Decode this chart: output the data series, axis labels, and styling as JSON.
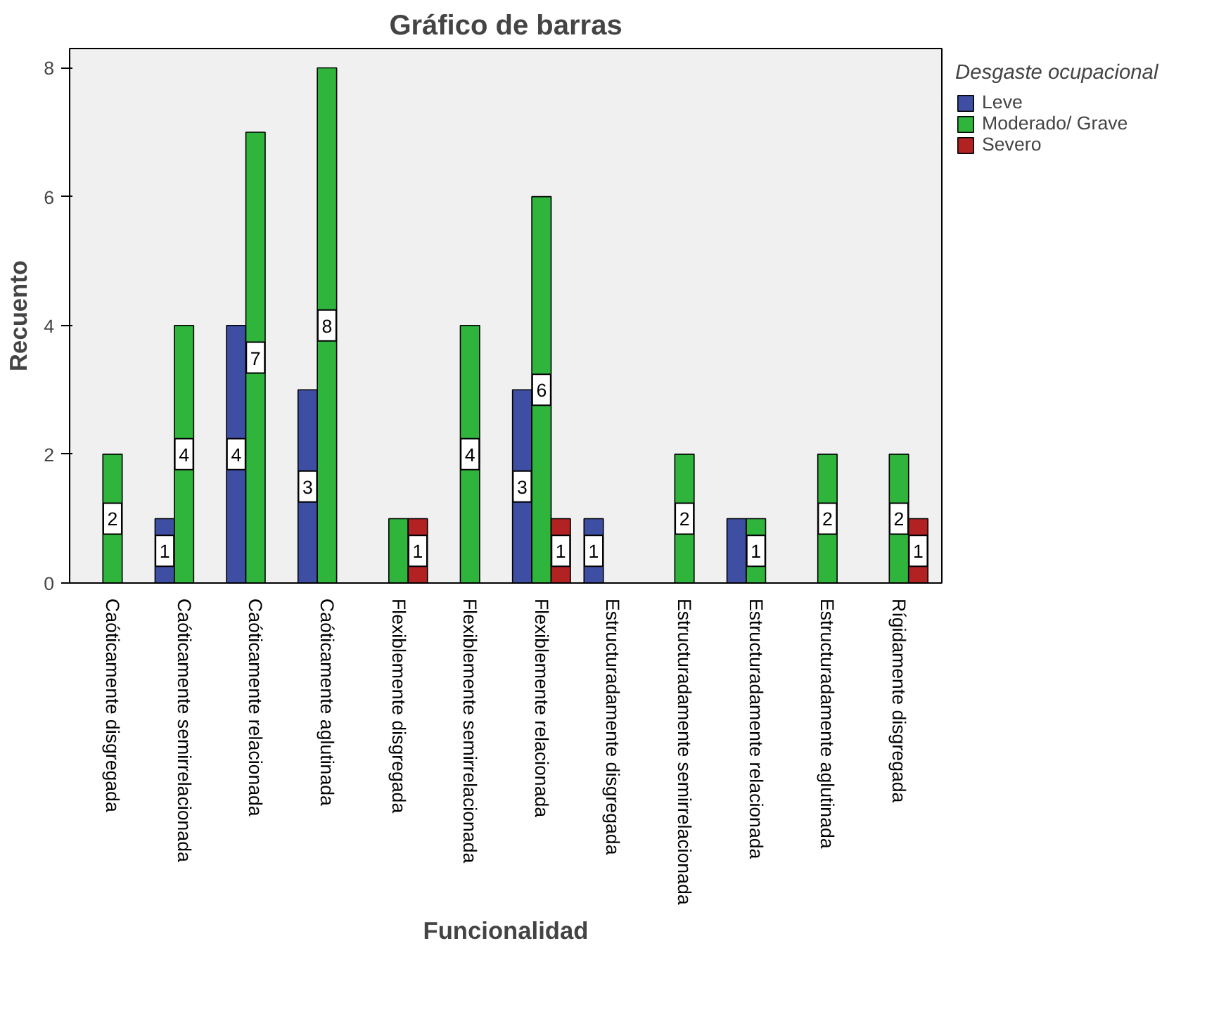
{
  "chart_data": {
    "type": "bar",
    "title": "Gráfico de barras",
    "xlabel": "Funcionalidad",
    "ylabel": "Recuento",
    "legend_title": "Desgaste ocupacional",
    "categories": [
      "Caóticamente disgregada",
      "Caóticamente semirrelacionada",
      "Caóticamente relacionada",
      "Caóticamente aglutinada",
      "Flexiblemente disgregada",
      "Flexiblemente semirrelacionada",
      "Flexiblemente relacionada",
      "Estructuradamente disgregada",
      "Estructuradamente semirrelacionada",
      "Estructuradamente relacionada",
      "Estructuradamente aglutinada",
      "Rígidamente disgregada"
    ],
    "series": [
      {
        "name": "Leve",
        "color": "#3e4fa3",
        "values": [
          null,
          1,
          4,
          3,
          null,
          null,
          3,
          1,
          null,
          1,
          null,
          null
        ],
        "value_labels": [
          null,
          "1",
          "4",
          "3",
          null,
          null,
          "3",
          "1",
          null,
          null,
          null,
          null
        ]
      },
      {
        "name": "Moderado/ Grave",
        "color": "#2fb43c",
        "values": [
          2,
          4,
          7,
          8,
          1,
          4,
          6,
          null,
          2,
          1,
          2,
          2
        ],
        "value_labels": [
          "2",
          "4",
          "7",
          "8",
          null,
          "4",
          "6",
          null,
          "2",
          "1",
          "2",
          "2"
        ]
      },
      {
        "name": "Severo",
        "color": "#b22222",
        "values": [
          null,
          null,
          null,
          null,
          1,
          null,
          1,
          null,
          null,
          null,
          null,
          1
        ],
        "value_labels": [
          null,
          null,
          null,
          null,
          "1",
          null,
          "1",
          null,
          null,
          null,
          null,
          "1"
        ]
      }
    ],
    "ylim": [
      0,
      8.3
    ],
    "yticks": [
      0,
      2,
      4,
      6,
      8
    ],
    "grid": false,
    "legend": "top right"
  }
}
